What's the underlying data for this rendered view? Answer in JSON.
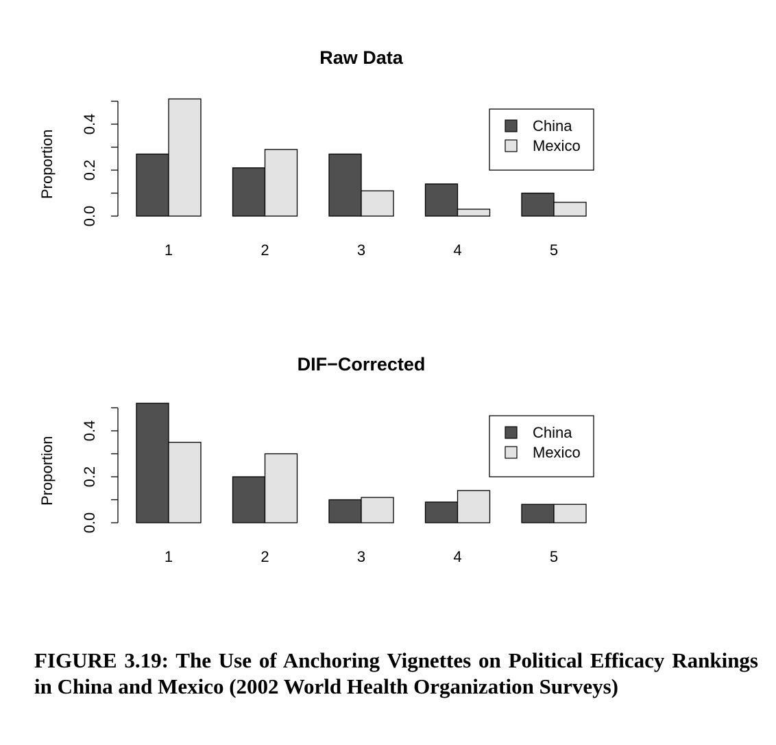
{
  "chart_data": [
    {
      "type": "bar",
      "title": "Raw Data",
      "xlabel": "",
      "ylabel": "Proportion",
      "categories": [
        "1",
        "2",
        "3",
        "4",
        "5"
      ],
      "series": [
        {
          "name": "China",
          "color": "#505050",
          "values": [
            0.27,
            0.21,
            0.27,
            0.14,
            0.1
          ]
        },
        {
          "name": "Mexico",
          "color": "#e3e3e3",
          "values": [
            0.51,
            0.29,
            0.11,
            0.03,
            0.06
          ]
        }
      ],
      "yticks": [
        "0.0",
        "0.2",
        "0.4"
      ],
      "ylim": [
        0,
        0.5
      ],
      "legend_position": "top-right",
      "grid": false
    },
    {
      "type": "bar",
      "title": "DIF−Corrected",
      "xlabel": "",
      "ylabel": "Proportion",
      "categories": [
        "1",
        "2",
        "3",
        "4",
        "5"
      ],
      "series": [
        {
          "name": "China",
          "color": "#505050",
          "values": [
            0.52,
            0.2,
            0.1,
            0.09,
            0.08
          ]
        },
        {
          "name": "Mexico",
          "color": "#e3e3e3",
          "values": [
            0.35,
            0.3,
            0.11,
            0.14,
            0.08
          ]
        }
      ],
      "yticks": [
        "0.0",
        "0.2",
        "0.4"
      ],
      "ylim": [
        0,
        0.5
      ],
      "legend_position": "top-right",
      "grid": false
    }
  ],
  "caption": "FIGURE 3.19: The Use of Anchoring Vignettes on Political Efficacy Rankings in China and Mexico (2002 World Health Organization Surveys)"
}
